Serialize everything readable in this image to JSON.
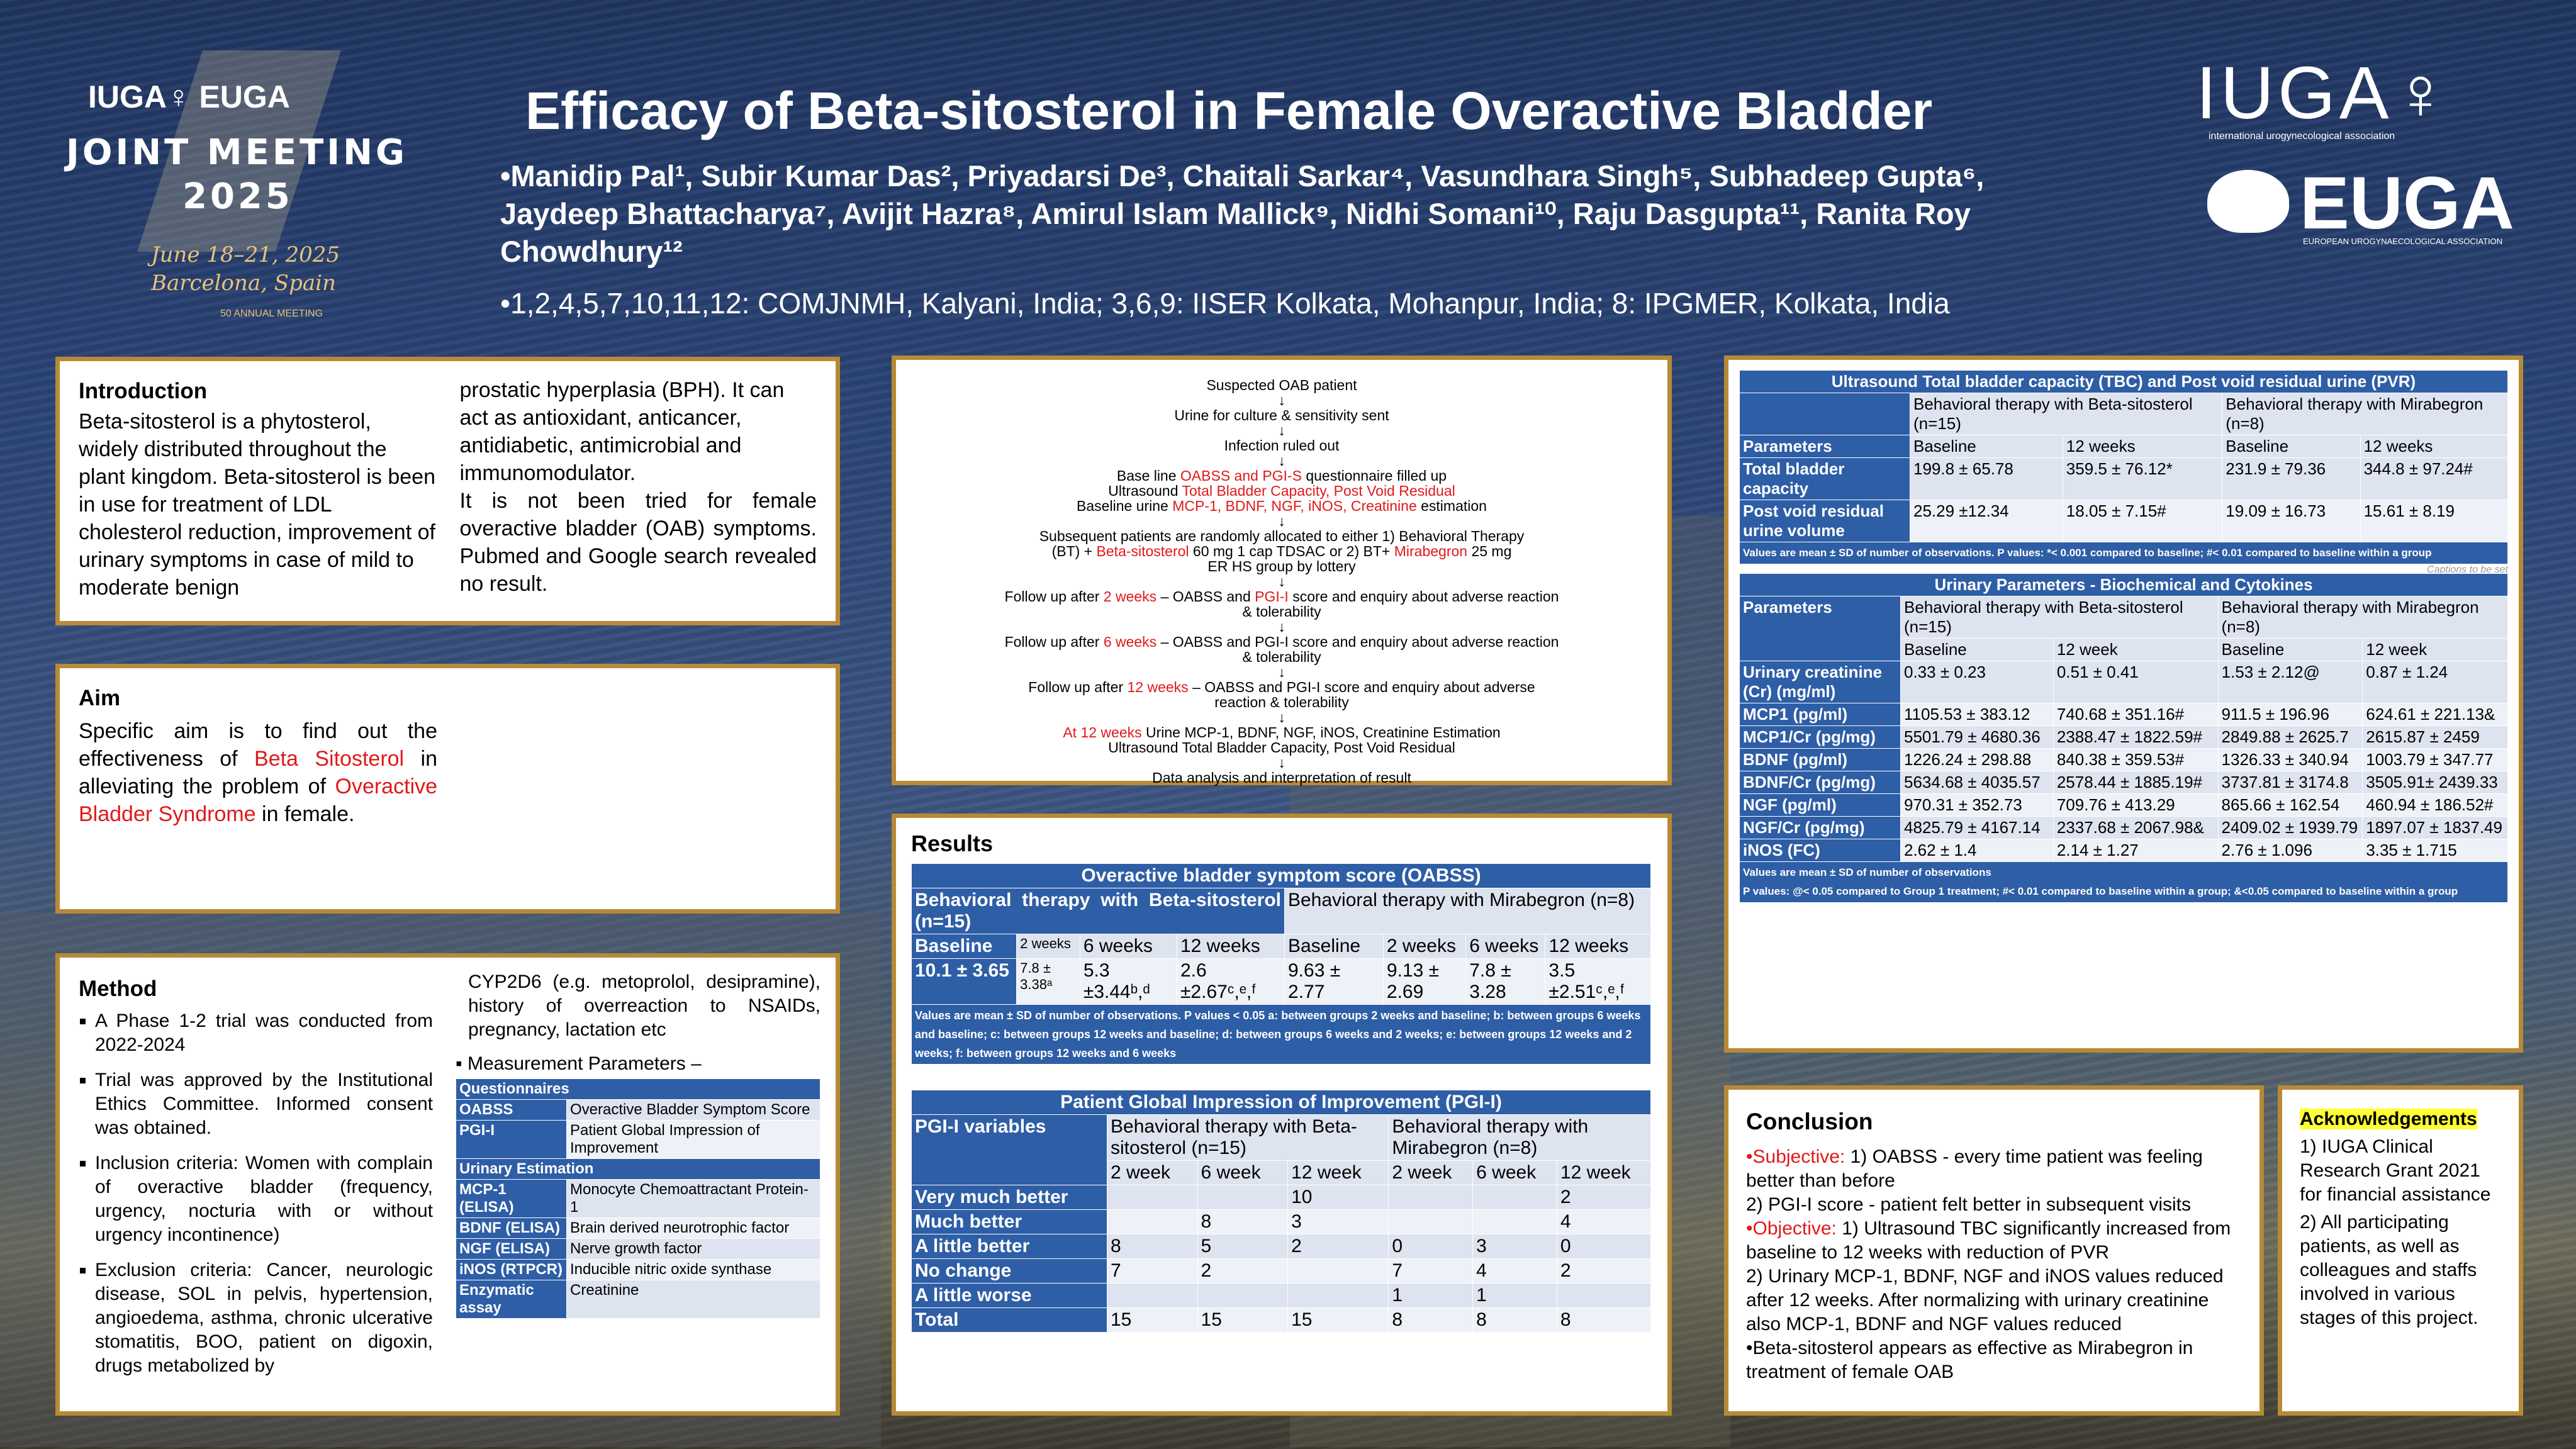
{
  "header": {
    "title": "Efficacy of Beta-sitosterol in Female Overactive Bladder",
    "authors_line1": "•Manidip Pal¹, Subir Kumar Das², Priyadarsi De³, Chaitali Sarkar⁴, Vasundhara Singh⁵, Subhadeep Gupta⁶,",
    "authors_line2": "Jaydeep Bhattacharya⁷, Avijit Hazra⁸, Amirul Islam Mallick⁹, Nidhi Somani¹⁰, Raju Dasgupta¹¹, Ranita Roy",
    "authors_line3": "Chowdhury¹²",
    "affiliations": "•1,2,4,5,7,10,11,12: COMJNMH, Kalyani, India; 3,6,9: IISER Kolkata, Mohanpur, India; 8: IPGMER, Kolkata, India"
  },
  "logo_left": {
    "orgs": "IUGA♀ EUGA",
    "meeting": "JOINT MEETING",
    "year": "2025",
    "dates": "June 18–21, 2025",
    "city": "Barcelona, Spain",
    "anniv": "50 ANNUAL MEETING"
  },
  "logo_right": {
    "iuga": "IUGA♀",
    "iuga_sub": "international urogynecological association",
    "euga": "EUGA",
    "euga_sub": "EUROPEAN UROGYNAECOLOGICAL ASSOCIATION"
  },
  "introduction": {
    "title": "Introduction",
    "col1": "Beta-sitosterol is a phytosterol, widely distributed throughout the plant kingdom. Beta-sitosterol is been in use for treatment of LDL cholesterol reduction, improvement of urinary symptoms in case of mild to moderate benign",
    "col2a": "prostatic hyperplasia (BPH). It can act as antioxidant, anticancer, antidiabetic, antimicrobial and immunomodulator.",
    "col2b": "It is not been tried for female overactive bladder (OAB) symptoms. Pubmed and Google search revealed no result."
  },
  "aim": {
    "title": "Aim",
    "t1": "Specific aim is to find out the effectiveness of ",
    "t2": "Beta Sitosterol",
    "t3": " in alleviating the problem of ",
    "t4": "Overactive Bladder Syndrome",
    "t5": " in female."
  },
  "method": {
    "title": "Method",
    "bullets": [
      "A Phase 1-2 trial was conducted from 2022-2024",
      "Trial was approved by the Institutional Ethics Committee. Informed consent was obtained.",
      "Inclusion criteria: Women with complain of overactive bladder (frequency, urgency, nocturia with or without urgency incontinence)",
      "Exclusion criteria: Cancer, neurologic disease, SOL in pelvis, hypertension, angioedema, asthma, chronic ulcerative stomatitis, BOO, patient on digoxin, drugs metabolized by"
    ],
    "col2_text": "CYP2D6 (e.g. metoprolol, desipramine), history of overreaction to NSAIDs, pregnancy, lactation etc",
    "measurement": "Measurement Parameters –",
    "table": {
      "q_header": "Questionnaires",
      "q_rows": [
        [
          "OABSS",
          "Overactive Bladder Symptom Score"
        ],
        [
          "PGI-I",
          "Patient Global Impression of Improvement"
        ]
      ],
      "u_header": "Urinary Estimation",
      "u_rows": [
        [
          "MCP-1 (ELISA)",
          "Monocyte Chemoattractant Protein-1"
        ],
        [
          "BDNF (ELISA)",
          "Brain derived neurotrophic factor"
        ],
        [
          "NGF (ELISA)",
          "Nerve growth factor"
        ],
        [
          "iNOS (RTPCR)",
          "Inducible nitric oxide synthase"
        ],
        [
          "Enzymatic assay",
          "Creatinine"
        ]
      ]
    }
  },
  "flowchart": {
    "lines": [
      {
        "parts": [
          [
            "Suspected OAB patient",
            ""
          ]
        ]
      },
      {
        "parts": [
          [
            "↓",
            ""
          ]
        ]
      },
      {
        "parts": [
          [
            "Urine for culture & sensitivity sent",
            ""
          ]
        ]
      },
      {
        "parts": [
          [
            "↓",
            ""
          ]
        ]
      },
      {
        "parts": [
          [
            "Infection ruled out",
            ""
          ]
        ]
      },
      {
        "parts": [
          [
            "↓",
            ""
          ]
        ]
      },
      {
        "parts": [
          [
            "Base line ",
            ""
          ],
          [
            "OABSS and PGI-S",
            "red"
          ],
          [
            " questionnaire filled up",
            ""
          ]
        ]
      },
      {
        "parts": [
          [
            "Ultrasound ",
            ""
          ],
          [
            "Total Bladder Capacity, Post Void Residual",
            "red"
          ]
        ]
      },
      {
        "parts": [
          [
            "Baseline urine ",
            ""
          ],
          [
            "MCP-1, BDNF, NGF, iNOS, Creatinine",
            "red"
          ],
          [
            " estimation",
            ""
          ]
        ]
      },
      {
        "parts": [
          [
            "↓",
            ""
          ]
        ]
      },
      {
        "parts": [
          [
            "Subsequent patients are randomly allocated to either 1) Behavioral Therapy",
            ""
          ]
        ]
      },
      {
        "parts": [
          [
            "(BT) + ",
            ""
          ],
          [
            "Beta-sitosterol",
            "red"
          ],
          [
            " 60 mg 1 cap TDSAC or 2) BT+ ",
            ""
          ],
          [
            "Mirabegron",
            "red"
          ],
          [
            " 25 mg",
            ""
          ]
        ]
      },
      {
        "parts": [
          [
            "ER HS group by lottery",
            ""
          ]
        ]
      },
      {
        "parts": [
          [
            "↓",
            ""
          ]
        ]
      },
      {
        "parts": [
          [
            "Follow up after ",
            ""
          ],
          [
            "2 weeks",
            "red"
          ],
          [
            " – OABSS and ",
            ""
          ],
          [
            "PGI-I",
            "red"
          ],
          [
            " score and enquiry about adverse reaction",
            ""
          ]
        ]
      },
      {
        "parts": [
          [
            "& tolerability",
            ""
          ]
        ]
      },
      {
        "parts": [
          [
            "↓",
            ""
          ]
        ]
      },
      {
        "parts": [
          [
            "Follow up after ",
            ""
          ],
          [
            "6 weeks",
            "red"
          ],
          [
            " – OABSS and PGI-I score and enquiry about adverse reaction",
            ""
          ]
        ]
      },
      {
        "parts": [
          [
            "& tolerability",
            ""
          ]
        ]
      },
      {
        "parts": [
          [
            "↓",
            ""
          ]
        ]
      },
      {
        "parts": [
          [
            "Follow up after ",
            ""
          ],
          [
            "12 weeks",
            "red"
          ],
          [
            " – OABSS and PGI-I score and enquiry about adverse",
            ""
          ]
        ]
      },
      {
        "parts": [
          [
            "reaction & tolerability",
            ""
          ]
        ]
      },
      {
        "parts": [
          [
            "↓",
            ""
          ]
        ]
      },
      {
        "parts": [
          [
            "At 12 weeks",
            "red"
          ],
          [
            " Urine MCP-1, BDNF, NGF, iNOS, Creatinine Estimation",
            ""
          ]
        ]
      },
      {
        "parts": [
          [
            "Ultrasound Total Bladder Capacity, Post Void Residual",
            ""
          ]
        ]
      },
      {
        "parts": [
          [
            "↓",
            ""
          ]
        ]
      },
      {
        "parts": [
          [
            "Data analysis and interpretation of result",
            ""
          ]
        ]
      }
    ]
  },
  "results": {
    "title": "Results",
    "oabss": {
      "caption": "Overactive bladder symptom score (OABSS)",
      "group1": "Behavioral therapy with Beta-sitosterol (n=15)",
      "group2": "Behavioral therapy with Mirabegron (n=8)",
      "sub": [
        "Baseline",
        "2 weeks",
        "6 weeks",
        "12 weeks",
        "Baseline",
        "2 weeks",
        "6 weeks",
        "12 weeks"
      ],
      "vals": [
        "10.1 ± 3.65",
        "7.8 ± 3.38ᵃ",
        "5.3 ±3.44ᵇ,ᵈ",
        "2.6 ±2.67ᶜ,ᵉ,ᶠ",
        "9.63 ± 2.77",
        "9.13 ± 2.69",
        "7.8 ± 3.28",
        "3.5 ±2.51ᶜ,ᵉ,ᶠ"
      ],
      "note": "Values are mean ± SD of number of observations. P values < 0.05 a: between groups 2 weeks and baseline; b: between groups 6 weeks and baseline; c: between groups 12 weeks and baseline; d: between groups 6 weeks and 2 weeks; e: between groups 12 weeks and 2 weeks; f: between groups 12 weeks and 6 weeks"
    },
    "pgi": {
      "caption": "Patient Global Impression of Improvement (PGI-I)",
      "var_label": "PGI-I variables",
      "group1": "Behavioral therapy with Beta-sitosterol (n=15)",
      "group2": "Behavioral therapy with Mirabegron (n=8)",
      "weeks": [
        "2 week",
        "6 week",
        "12 week",
        "2 week",
        "6 week",
        "12 week"
      ],
      "rows": [
        [
          "Very much better",
          "",
          "",
          "10",
          "",
          "",
          "2"
        ],
        [
          "Much better",
          "",
          "8",
          "3",
          "",
          "",
          "4"
        ],
        [
          "A little better",
          "8",
          "5",
          "2",
          "0",
          "3",
          "0"
        ],
        [
          "No change",
          "7",
          "2",
          "",
          "7",
          "4",
          "2"
        ],
        [
          "A little worse",
          "",
          "",
          "",
          "1",
          "1",
          ""
        ],
        [
          "Total",
          "15",
          "15",
          "15",
          "8",
          "8",
          "8"
        ]
      ]
    }
  },
  "ultrasound": {
    "caption": "Ultrasound Total bladder capacity (TBC) and Post void residual urine (PVR)",
    "group1": "Behavioral therapy with Beta-sitosterol (n=15)",
    "group2": "Behavioral therapy with Mirabegron (n=8)",
    "param_label": "Parameters",
    "sub": [
      "Baseline",
      "12 weeks",
      "Baseline",
      "12 weeks"
    ],
    "rows": [
      [
        "Total bladder capacity",
        "199.8 ± 65.78",
        "359.5 ± 76.12*",
        "231.9 ± 79.36",
        "344.8 ± 97.24#"
      ],
      [
        "Post void residual urine volume",
        "25.29 ±12.34",
        "18.05 ± 7.15#",
        "19.09 ± 16.73",
        "15.61 ± 8.19"
      ]
    ],
    "note": "Values are mean ± SD of number of observations. P values: *< 0.001 compared to baseline; #< 0.01 compared to baseline within a group",
    "stray": "Captions to be set"
  },
  "urinary": {
    "caption": "Urinary Parameters - Biochemical and Cytokines",
    "param_label": "Parameters",
    "group1": "Behavioral therapy with Beta-sitosterol (n=15)",
    "group2": "Behavioral therapy with Mirabegron (n=8)",
    "sub": [
      "Baseline",
      "12 week",
      "Baseline",
      "12 week"
    ],
    "rows": [
      [
        "Urinary creatinine (Cr) (mg/ml)",
        "0.33 ± 0.23",
        "0.51 ± 0.41",
        "1.53 ± 2.12@",
        "0.87 ± 1.24"
      ],
      [
        "MCP1 (pg/ml)",
        "1105.53 ± 383.12",
        "740.68 ± 351.16#",
        "911.5 ± 196.96",
        "624.61 ± 221.13&"
      ],
      [
        "MCP1/Cr (pg/mg)",
        "5501.79 ± 4680.36",
        "2388.47 ± 1822.59#",
        "2849.88 ± 2625.7",
        "2615.87 ± 2459"
      ],
      [
        "BDNF (pg/ml)",
        "1226.24 ± 298.88",
        "840.38 ± 359.53#",
        "1326.33 ± 340.94",
        "1003.79 ± 347.77"
      ],
      [
        "BDNF/Cr (pg/mg)",
        "5634.68 ± 4035.57",
        "2578.44 ± 1885.19#",
        "3737.81 ± 3174.8",
        "3505.91± 2439.33"
      ],
      [
        "NGF (pg/ml)",
        "970.31 ± 352.73",
        "709.76 ± 413.29",
        "865.66 ± 162.54",
        "460.94 ± 186.52#"
      ],
      [
        "NGF/Cr (pg/mg)",
        "4825.79 ± 4167.14",
        "2337.68 ± 2067.98&",
        "2409.02 ± 1939.79",
        "1897.07 ± 1837.49"
      ],
      [
        "iNOS (FC)",
        "2.62 ± 1.4",
        "2.14 ± 1.27",
        "2.76 ± 1.096",
        "3.35 ± 1.715"
      ]
    ],
    "note1": "Values are mean ± SD of number of observations",
    "note2": "P values: @< 0.05 compared to Group 1 treatment; #< 0.01 compared to baseline within a group; &<0.05 compared to baseline within a group"
  },
  "conclusion": {
    "title": "Conclusion",
    "sub_label": "•Subjective:",
    "sub1": " 1) OABSS - every time patient was feeling better than before",
    "sub2": "2) PGI-I score - patient felt better in subsequent visits",
    "obj_label": "•Objective:",
    "obj1": "  1) Ultrasound TBC significantly increased from baseline to 12 weeks with reduction of PVR",
    "obj2": "2) Urinary MCP-1, BDNF, NGF and iNOS values reduced after 12 weeks. After normalizing with urinary creatinine also MCP-1, BDNF and NGF values reduced",
    "final": "•Beta-sitosterol appears as effective as Mirabegron in treatment of female OAB"
  },
  "ack": {
    "title": "Acknowledgements",
    "p1": "1) IUGA Clinical Research Grant 2021 for financial assistance",
    "p2": "2) All participating patients, as well as colleagues and staffs involved in various stages of this project."
  },
  "colors": {
    "accent_gold": "#b68a36",
    "table_blue": "#2e5ea6",
    "red": "#e0191b",
    "ack_highlight": "#ffff33"
  }
}
